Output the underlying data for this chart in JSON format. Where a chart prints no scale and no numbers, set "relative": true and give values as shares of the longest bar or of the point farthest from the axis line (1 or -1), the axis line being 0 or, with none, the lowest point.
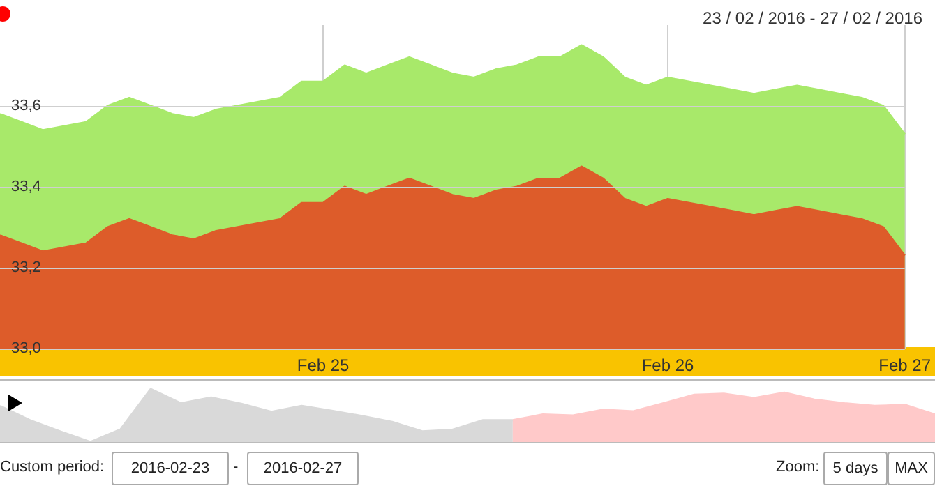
{
  "chart_data": [
    {
      "type": "area",
      "subtitle": "23 / 02 / 2016 - 27 / 02 / 2016",
      "categories": [
        null,
        null,
        null,
        null,
        null,
        null,
        null,
        null,
        null,
        null,
        null,
        null,
        null,
        null,
        null,
        "Feb 25",
        null,
        null,
        null,
        null,
        null,
        null,
        null,
        null,
        null,
        null,
        null,
        null,
        null,
        null,
        null,
        "Feb 26",
        null,
        null,
        null,
        null,
        null,
        null,
        null,
        null,
        null,
        null,
        "Feb 27"
      ],
      "series": [
        {
          "color": "#a8e96a",
          "values": [
            33.58,
            33.56,
            33.54,
            33.55,
            33.56,
            33.6,
            33.62,
            33.6,
            33.58,
            33.57,
            33.59,
            33.6,
            33.61,
            33.62,
            33.66,
            33.66,
            33.7,
            33.68,
            33.7,
            33.72,
            33.7,
            33.68,
            33.67,
            33.69,
            33.7,
            33.72,
            33.72,
            33.75,
            33.72,
            33.67,
            33.65,
            33.67,
            33.66,
            33.65,
            33.64,
            33.63,
            33.64,
            33.65,
            33.64,
            33.63,
            33.62,
            33.6,
            33.53
          ]
        },
        {
          "color": "#dd5c2a",
          "values": [
            33.28,
            33.26,
            33.24,
            33.25,
            33.26,
            33.3,
            33.32,
            33.3,
            33.28,
            33.27,
            33.29,
            33.3,
            33.31,
            33.32,
            33.36,
            33.36,
            33.4,
            33.38,
            33.4,
            33.42,
            33.4,
            33.38,
            33.37,
            33.39,
            33.4,
            33.42,
            33.42,
            33.45,
            33.42,
            33.37,
            33.35,
            33.37,
            33.36,
            33.35,
            33.34,
            33.33,
            33.34,
            33.35,
            33.34,
            33.33,
            33.32,
            33.3,
            33.23
          ]
        }
      ],
      "ylim": [
        33.0,
        33.8
      ],
      "yticks": [
        {
          "value": 33.0,
          "label": "33,0"
        },
        {
          "value": 33.2,
          "label": "33,2"
        },
        {
          "value": 33.4,
          "label": "33,4"
        },
        {
          "value": 33.6,
          "label": "33,6"
        }
      ],
      "grid": true,
      "marker": "none",
      "annotations": [
        "Custom period:",
        "2016-02-23",
        "-",
        "2016-02-27",
        "Zoom:",
        "5 days",
        "MAX"
      ]
    },
    {
      "type": "area",
      "relative": true,
      "marker": "none",
      "categories": [
        null,
        null,
        null,
        null,
        null,
        null,
        null,
        null,
        null,
        null,
        null,
        null,
        null,
        null,
        null,
        null,
        null,
        null,
        null,
        null,
        null,
        null,
        null,
        null,
        null,
        null,
        null,
        null,
        null,
        null,
        null,
        null
      ],
      "series": [
        {
          "color": "#d9d9d9",
          "values": [
            0.68,
            0.41,
            0.2,
            0,
            0.24,
            1.0,
            0.73,
            0.84,
            0.72,
            0.57,
            0.68,
            0.59,
            0.49,
            0.38,
            0.2,
            0.23,
            0.41,
            0.41,
            null,
            null,
            null,
            null,
            null,
            null,
            null,
            null,
            null,
            null,
            null,
            null,
            null,
            null
          ]
        },
        {
          "color": "#ffc9c9",
          "values": [
            null,
            null,
            null,
            null,
            null,
            null,
            null,
            null,
            null,
            null,
            null,
            null,
            null,
            null,
            null,
            null,
            null,
            0.41,
            0.52,
            0.5,
            0.61,
            0.58,
            0.73,
            0.89,
            0.91,
            0.83,
            0.93,
            0.8,
            0.73,
            0.68,
            0.7,
            0.52
          ]
        }
      ]
    }
  ]
}
